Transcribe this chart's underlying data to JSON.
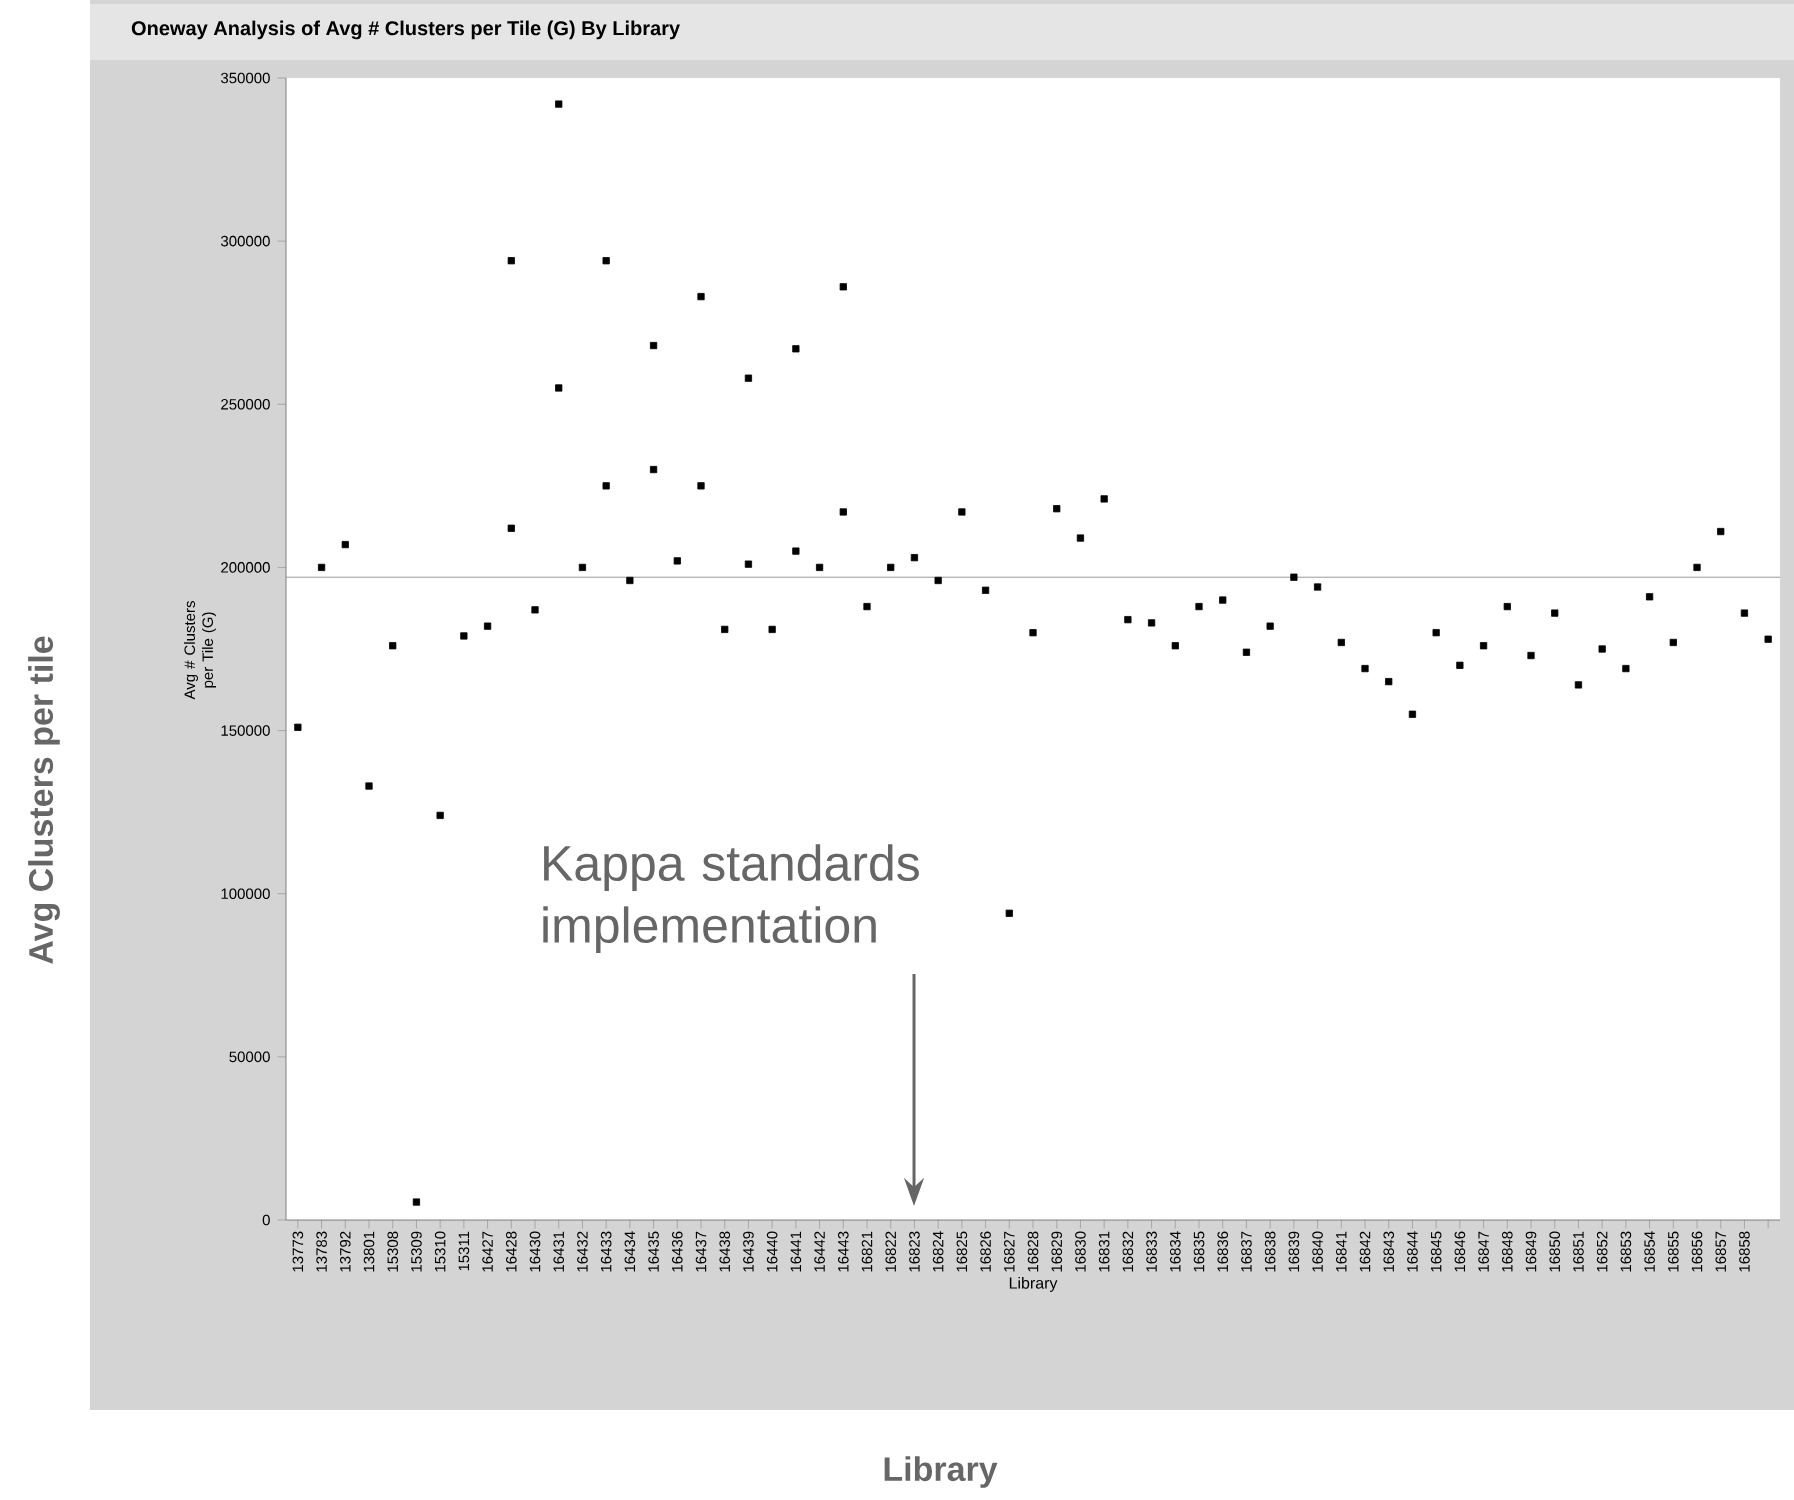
{
  "chart_data": {
    "type": "scatter",
    "title": "Oneway Analysis of Avg # Clusters per Tile (G) By Library",
    "xlabel": "Library",
    "ylabel": "Avg # Clusters per Tile (G)",
    "categories": [
      "13773",
      "13783",
      "13792",
      "13801",
      "15308",
      "15309",
      "15310",
      "15311",
      "16427",
      "16428",
      "16430",
      "16431",
      "16432",
      "16433",
      "16434",
      "16435",
      "16436",
      "16437",
      "16438",
      "16439",
      "16440",
      "16441",
      "16442",
      "16443",
      "16821",
      "16822",
      "16823",
      "16824",
      "16825",
      "16826",
      "16827",
      "16828",
      "16829",
      "16830",
      "16831",
      "16832",
      "16833",
      "16834",
      "16835",
      "16836",
      "16837",
      "16838",
      "16839",
      "16840",
      "16841",
      "16842",
      "16843",
      "16844",
      "16845",
      "16846",
      "16847",
      "16848",
      "16849",
      "16850",
      "16851",
      "16852",
      "16853",
      "16854",
      "16855",
      "16856",
      "16857",
      "16858",
      null
    ],
    "series": [
      {
        "color": "#000000",
        "values": [
          151000,
          200000,
          207000,
          133000,
          176000,
          5500,
          124000,
          179000,
          182000,
          212000,
          187000,
          255000,
          200000,
          225000,
          196000,
          230000,
          202000,
          225000,
          181000,
          201000,
          181000,
          205000,
          200000,
          217000,
          188000,
          200000,
          203000,
          196000,
          217000,
          193000,
          94000,
          180000,
          218000,
          209000,
          221000,
          184000,
          183000,
          176000,
          188000,
          190000,
          174000,
          182000,
          197000,
          194000,
          177000,
          169000,
          165000,
          155000,
          180000,
          170000,
          176000,
          188000,
          173000,
          186000,
          164000,
          175000,
          169000,
          191000,
          177000,
          200000,
          211000,
          186000,
          178000
        ]
      },
      {
        "color": "#000000",
        "values": [
          null,
          null,
          null,
          null,
          null,
          null,
          null,
          null,
          null,
          294000,
          null,
          342000,
          null,
          294000,
          null,
          268000,
          null,
          283000,
          null,
          258000,
          null,
          267000,
          null,
          286000,
          null,
          null,
          null,
          null,
          null,
          null,
          null,
          null,
          null,
          null,
          null,
          null,
          null,
          null,
          null,
          null,
          null,
          null,
          null,
          null,
          null,
          null,
          null,
          null,
          null,
          null,
          null,
          null,
          null,
          null,
          null,
          null,
          null,
          null,
          null,
          null,
          null,
          null,
          null
        ]
      }
    ],
    "ylim": [
      0,
      350000
    ],
    "yticks": [
      0,
      50000,
      100000,
      150000,
      200000,
      250000,
      300000,
      350000
    ],
    "marker": "square",
    "ref_lines": [
      {
        "axis": "y",
        "value": 197000,
        "color": "#808080"
      }
    ],
    "annotations": [
      "Kappa standards implementation",
      "Avg Clusters per tile",
      "Library"
    ]
  }
}
